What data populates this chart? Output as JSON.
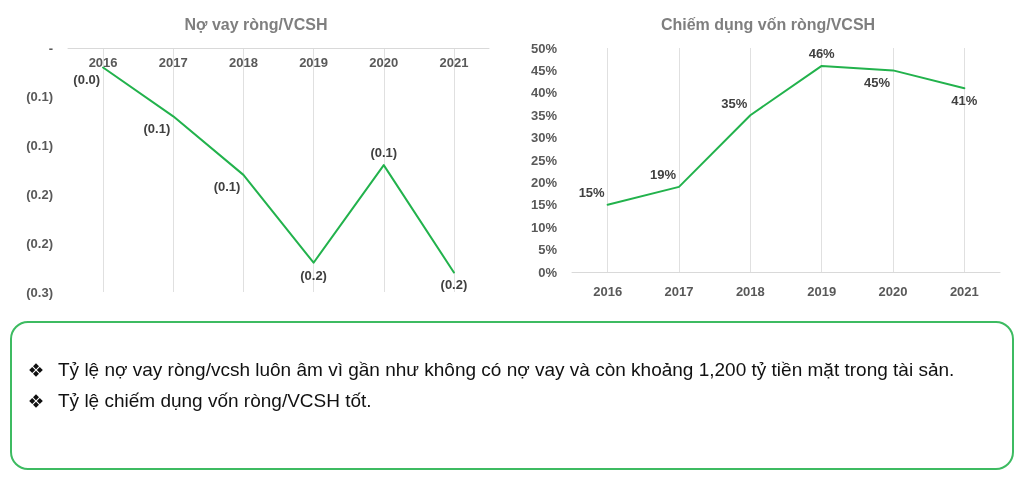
{
  "chart_data": [
    {
      "type": "line",
      "title": "Nợ vay ròng/VCSH",
      "categories": [
        "2016",
        "2017",
        "2018",
        "2019",
        "2020",
        "2021"
      ],
      "values": [
        -0.02,
        -0.07,
        -0.13,
        -0.22,
        -0.12,
        -0.23
      ],
      "value_labels": [
        "(0.0)",
        "(0.1)",
        "(0.1)",
        "(0.2)",
        "(0.1)",
        "(0.2)"
      ],
      "color": "#22b24c",
      "ylim": [
        -0.25,
        0
      ],
      "yticks": [
        {
          "value": -0.25,
          "label": "(0.3)"
        },
        {
          "value": -0.2,
          "label": "(0.2)"
        },
        {
          "value": -0.15,
          "label": "(0.2)"
        },
        {
          "value": -0.1,
          "label": "(0.1)"
        },
        {
          "value": -0.05,
          "label": "(0.1)"
        },
        {
          "value": 0,
          "label": "-"
        }
      ],
      "grid": "x",
      "marker": "none"
    },
    {
      "type": "line",
      "title": "Chiếm dụng vốn ròng/VCSH",
      "categories": [
        "2016",
        "2017",
        "2018",
        "2019",
        "2020",
        "2021"
      ],
      "values": [
        15,
        19,
        35,
        46,
        45,
        41
      ],
      "value_labels": [
        "15%",
        "19%",
        "35%",
        "46%",
        "45%",
        "41%"
      ],
      "color": "#22b24c",
      "ylim": [
        0,
        50
      ],
      "yticks": [
        {
          "value": 0,
          "label": "0%"
        },
        {
          "value": 5,
          "label": "5%"
        },
        {
          "value": 10,
          "label": "10%"
        },
        {
          "value": 15,
          "label": "15%"
        },
        {
          "value": 20,
          "label": "20%"
        },
        {
          "value": 25,
          "label": "25%"
        },
        {
          "value": 30,
          "label": "30%"
        },
        {
          "value": 35,
          "label": "35%"
        },
        {
          "value": 40,
          "label": "40%"
        },
        {
          "value": 45,
          "label": "45%"
        },
        {
          "value": 50,
          "label": "50%"
        }
      ],
      "grid": "x",
      "marker": "none"
    },
    {
      "type": "other",
      "annotations": [
        "Tỷ lệ nợ vay ròng/vcsh luôn âm vì gần như không có nợ vay và còn khoảng 1,200 tỷ tiền mặt trong tài sản.",
        "Tỷ lệ chiếm dụng vốn ròng/VCSH tốt."
      ]
    }
  ]
}
